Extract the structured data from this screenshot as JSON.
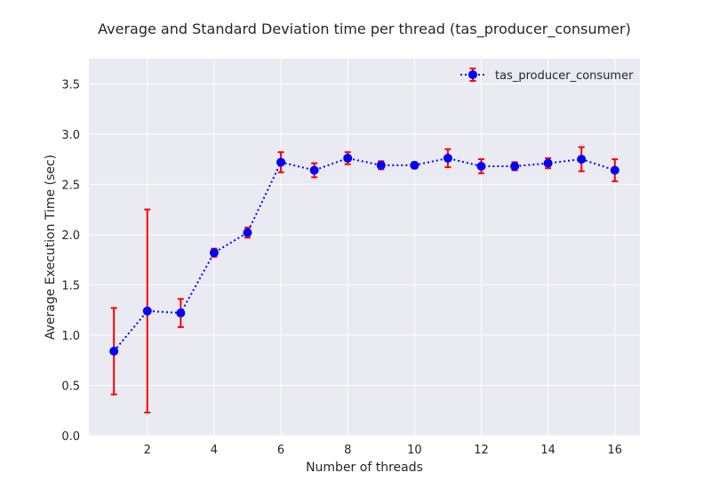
{
  "chart_data": {
    "type": "line",
    "title": "Average and Standard Deviation time per thread (tas_producer_consumer)",
    "xlabel": "Number of threads",
    "ylabel": "Average Execution Time (sec)",
    "xlim": [
      0.25,
      16.75
    ],
    "ylim": [
      0,
      3.75
    ],
    "xticks": [
      2,
      4,
      6,
      8,
      10,
      12,
      14,
      16
    ],
    "yticks": [
      0.0,
      0.5,
      1.0,
      1.5,
      2.0,
      2.5,
      3.0,
      3.5
    ],
    "ytick_labels": [
      "0.0",
      "0.5",
      "1.0",
      "1.5",
      "2.0",
      "2.5",
      "3.0",
      "3.5"
    ],
    "grid": true,
    "legend_position": "top-right",
    "series": [
      {
        "name": "tas_producer_consumer",
        "line_color": "#0000ff",
        "line_style": "dotted",
        "marker_color": "#0000ff",
        "error_color": "#ff0000",
        "x": [
          1,
          2,
          3,
          4,
          5,
          6,
          7,
          8,
          9,
          10,
          11,
          12,
          13,
          14,
          15,
          16
        ],
        "y": [
          0.84,
          1.24,
          1.22,
          1.82,
          2.02,
          2.72,
          2.64,
          2.76,
          2.69,
          2.69,
          2.76,
          2.68,
          2.68,
          2.71,
          2.75,
          2.64
        ],
        "yerr": [
          0.43,
          1.01,
          0.14,
          0.04,
          0.05,
          0.1,
          0.07,
          0.06,
          0.04,
          0.03,
          0.09,
          0.07,
          0.04,
          0.05,
          0.12,
          0.11
        ]
      }
    ]
  }
}
